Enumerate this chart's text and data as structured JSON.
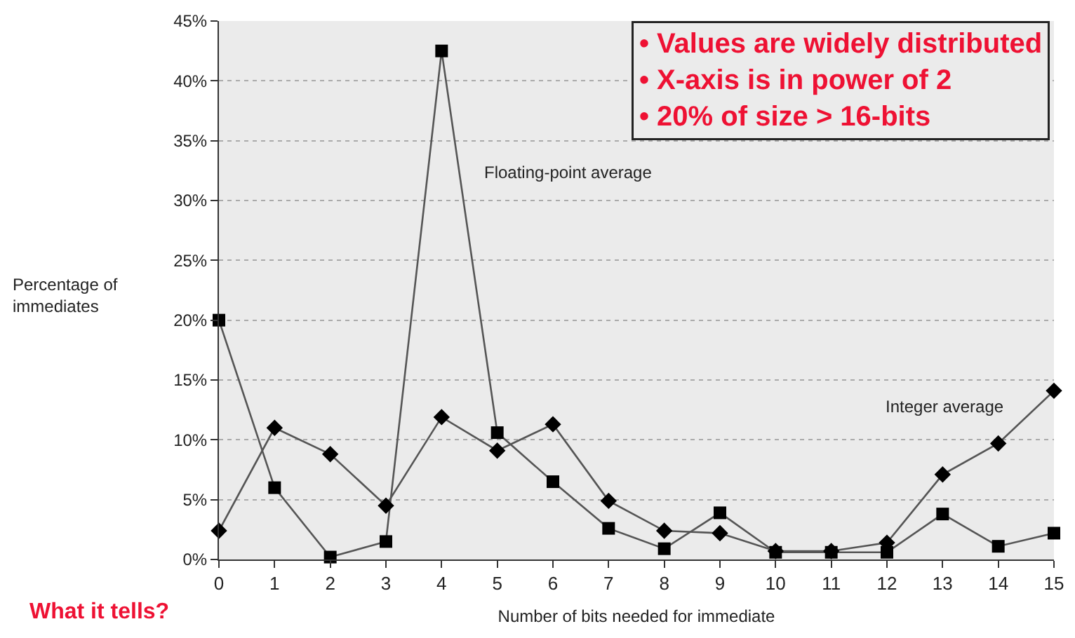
{
  "chart_data": {
    "type": "line",
    "xlabel": "Number of bits needed for immediate",
    "ylabel": "Percentage of\nimmediates",
    "x": [
      0,
      1,
      2,
      3,
      4,
      5,
      6,
      7,
      8,
      9,
      10,
      11,
      12,
      13,
      14,
      15
    ],
    "series": [
      {
        "name": "Floating-point average",
        "color": "#000000",
        "marker": "square",
        "values": [
          20,
          6,
          0.2,
          1.5,
          42.5,
          10.6,
          6.5,
          2.6,
          0.9,
          3.9,
          0.6,
          0.6,
          0.6,
          3.8,
          1.1,
          2.2
        ]
      },
      {
        "name": "Integer average",
        "color": "#000000",
        "marker": "diamond",
        "values": [
          2.4,
          11,
          8.8,
          4.5,
          11.9,
          9.1,
          11.3,
          4.9,
          2.4,
          2.2,
          0.7,
          0.7,
          1.4,
          7.1,
          9.7,
          14.1
        ]
      }
    ],
    "xlim": [
      0,
      15
    ],
    "xticks": [
      0,
      1,
      2,
      3,
      4,
      5,
      6,
      7,
      8,
      9,
      10,
      11,
      12,
      13,
      14,
      15
    ],
    "ylim": [
      0,
      45
    ],
    "yticks": [
      {
        "value": 0,
        "label": "0%"
      },
      {
        "value": 5,
        "label": "5%"
      },
      {
        "value": 10,
        "label": "10%"
      },
      {
        "value": 15,
        "label": "15%"
      },
      {
        "value": 20,
        "label": "20%"
      },
      {
        "value": 25,
        "label": "25%"
      },
      {
        "value": 30,
        "label": "30%"
      },
      {
        "value": 35,
        "label": "35%"
      },
      {
        "value": 40,
        "label": "40%"
      },
      {
        "value": 45,
        "label": "45%"
      }
    ],
    "grid": "y",
    "legend": false,
    "line_style": "solid",
    "annotations": [
      "• Values are widely distributed\n• X-axis is in power of 2\n• 20% of size > 16-bits",
      "What it tells?"
    ]
  }
}
